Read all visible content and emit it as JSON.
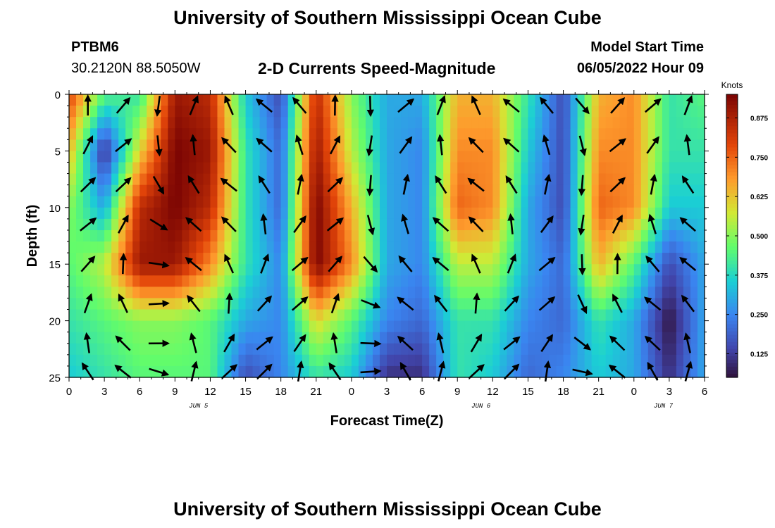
{
  "page": {
    "title": "University of Southern Mississippi Ocean Cube",
    "station": "PTBM6",
    "coordinates": "30.2120N  88.5050W",
    "subtitle": "2-D Currents Speed-Magnitude",
    "model_start_label": "Model Start Time",
    "model_start_value": "06/05/2022 Hour 09",
    "footer_title": "University of Southern Mississippi Ocean Cube"
  },
  "chart_data": {
    "type": "heatmap",
    "title": "2-D Currents Speed-Magnitude",
    "xlabel": "Forecast Time(Z)",
    "ylabel": "Depth (ft)",
    "x_ticks": [
      "0",
      "3",
      "6",
      "9",
      "12",
      "15",
      "18",
      "21",
      "0",
      "3",
      "6",
      "9",
      "12",
      "15",
      "18",
      "21",
      "0",
      "3",
      "6"
    ],
    "x_hours_range": [
      0,
      54
    ],
    "y_ticks": [
      "0",
      "5",
      "10",
      "15",
      "20",
      "25"
    ],
    "y_range": [
      0,
      25
    ],
    "y_inverted": true,
    "date_labels": [
      {
        "text": "JUN 5",
        "hour": 11
      },
      {
        "text": "JUN 6",
        "hour": 35
      },
      {
        "text": "JUN 7",
        "hour": 50.5
      }
    ],
    "colorbar": {
      "label": "Knots",
      "range": [
        0.05,
        0.95
      ],
      "ticks": [
        "0.875",
        "0.750",
        "0.625",
        "0.500",
        "0.375",
        "0.250",
        "0.125"
      ],
      "tick_values": [
        0.875,
        0.75,
        0.625,
        0.5,
        0.375,
        0.25,
        0.125
      ]
    },
    "speed_field": {
      "units": "knots",
      "hours": [
        0,
        3,
        6,
        9,
        12,
        15,
        18,
        21,
        24,
        27,
        30,
        33,
        36,
        39,
        42,
        45,
        48,
        51,
        54
      ],
      "depths_ft": [
        0,
        5,
        10,
        15,
        20,
        25
      ],
      "values": [
        [
          0.8,
          0.45,
          0.4,
          0.9,
          0.85,
          0.35,
          0.15,
          0.85,
          0.5,
          0.3,
          0.3,
          0.65,
          0.65,
          0.4,
          0.15,
          0.65,
          0.7,
          0.4,
          0.45
        ],
        [
          0.65,
          0.1,
          0.6,
          0.95,
          0.9,
          0.4,
          0.2,
          0.9,
          0.55,
          0.3,
          0.25,
          0.7,
          0.7,
          0.35,
          0.15,
          0.7,
          0.7,
          0.4,
          0.4
        ],
        [
          0.5,
          0.3,
          0.85,
          0.95,
          0.85,
          0.4,
          0.2,
          0.95,
          0.65,
          0.3,
          0.25,
          0.75,
          0.7,
          0.3,
          0.15,
          0.75,
          0.7,
          0.35,
          0.35
        ],
        [
          0.45,
          0.55,
          0.9,
          0.9,
          0.7,
          0.4,
          0.25,
          0.95,
          0.7,
          0.3,
          0.25,
          0.55,
          0.55,
          0.3,
          0.2,
          0.65,
          0.45,
          0.15,
          0.3
        ],
        [
          0.4,
          0.45,
          0.5,
          0.5,
          0.45,
          0.3,
          0.25,
          0.6,
          0.45,
          0.25,
          0.2,
          0.4,
          0.4,
          0.25,
          0.2,
          0.4,
          0.3,
          0.05,
          0.3
        ],
        [
          0.35,
          0.4,
          0.45,
          0.45,
          0.45,
          0.15,
          0.25,
          0.4,
          0.35,
          0.1,
          0.1,
          0.4,
          0.35,
          0.2,
          0.25,
          0.35,
          0.3,
          0.1,
          0.3
        ]
      ]
    }
  }
}
